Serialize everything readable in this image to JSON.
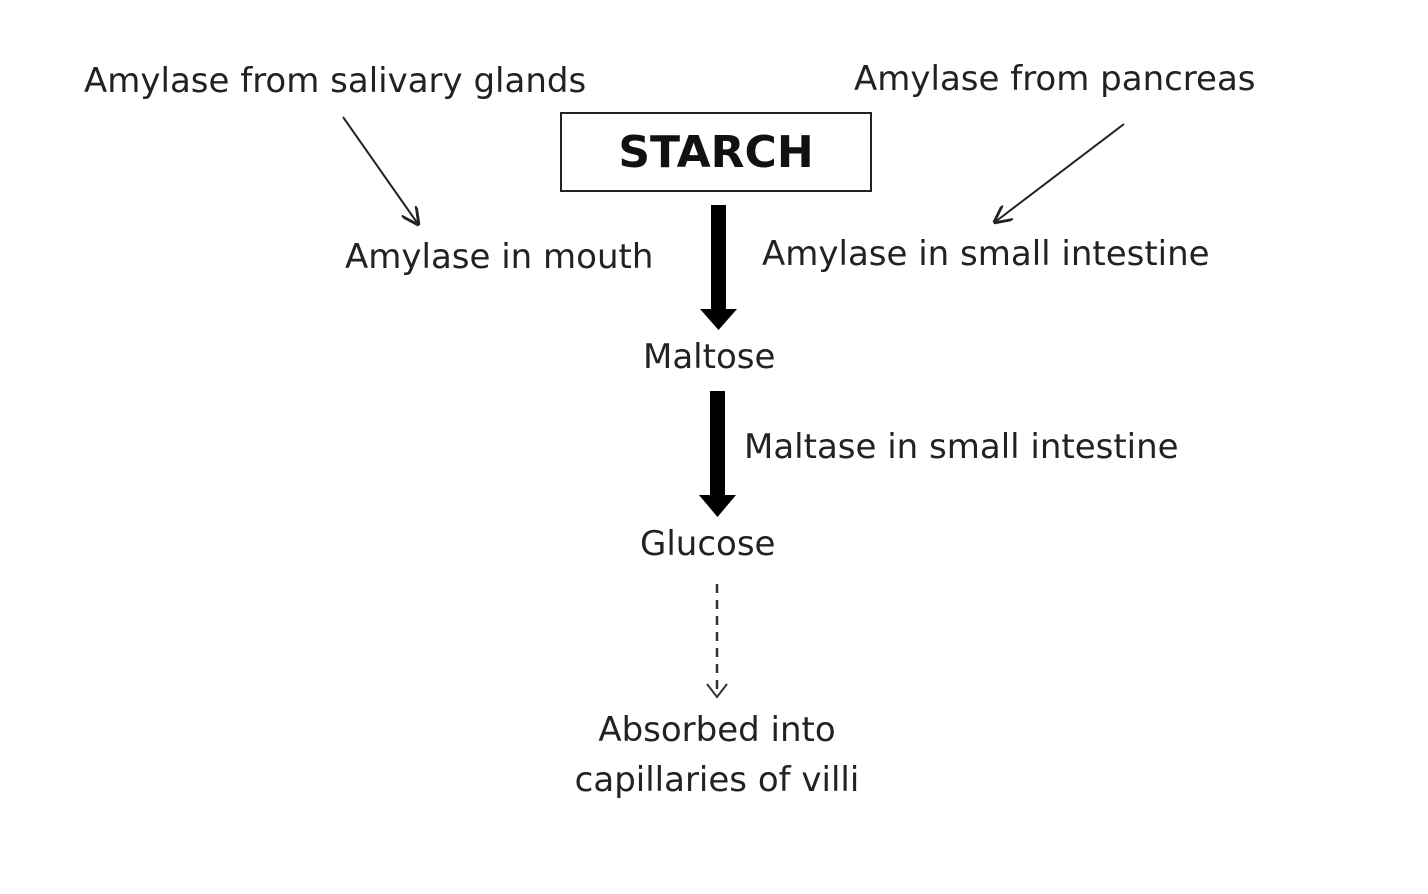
{
  "nodes": {
    "starch": "STARCH",
    "maltose": "Maltose",
    "glucose": "Glucose",
    "absorbed_line1": "Absorbed into",
    "absorbed_line2": "capillaries of villi"
  },
  "enzymes": {
    "salivary_source": "Amylase from salivary glands",
    "pancreas_source": "Amylase from pancreas",
    "mouth": "Amylase in mouth",
    "small_intestine_amylase": "Amylase in small intestine",
    "small_intestine_maltase": "Maltase in small intestine"
  }
}
